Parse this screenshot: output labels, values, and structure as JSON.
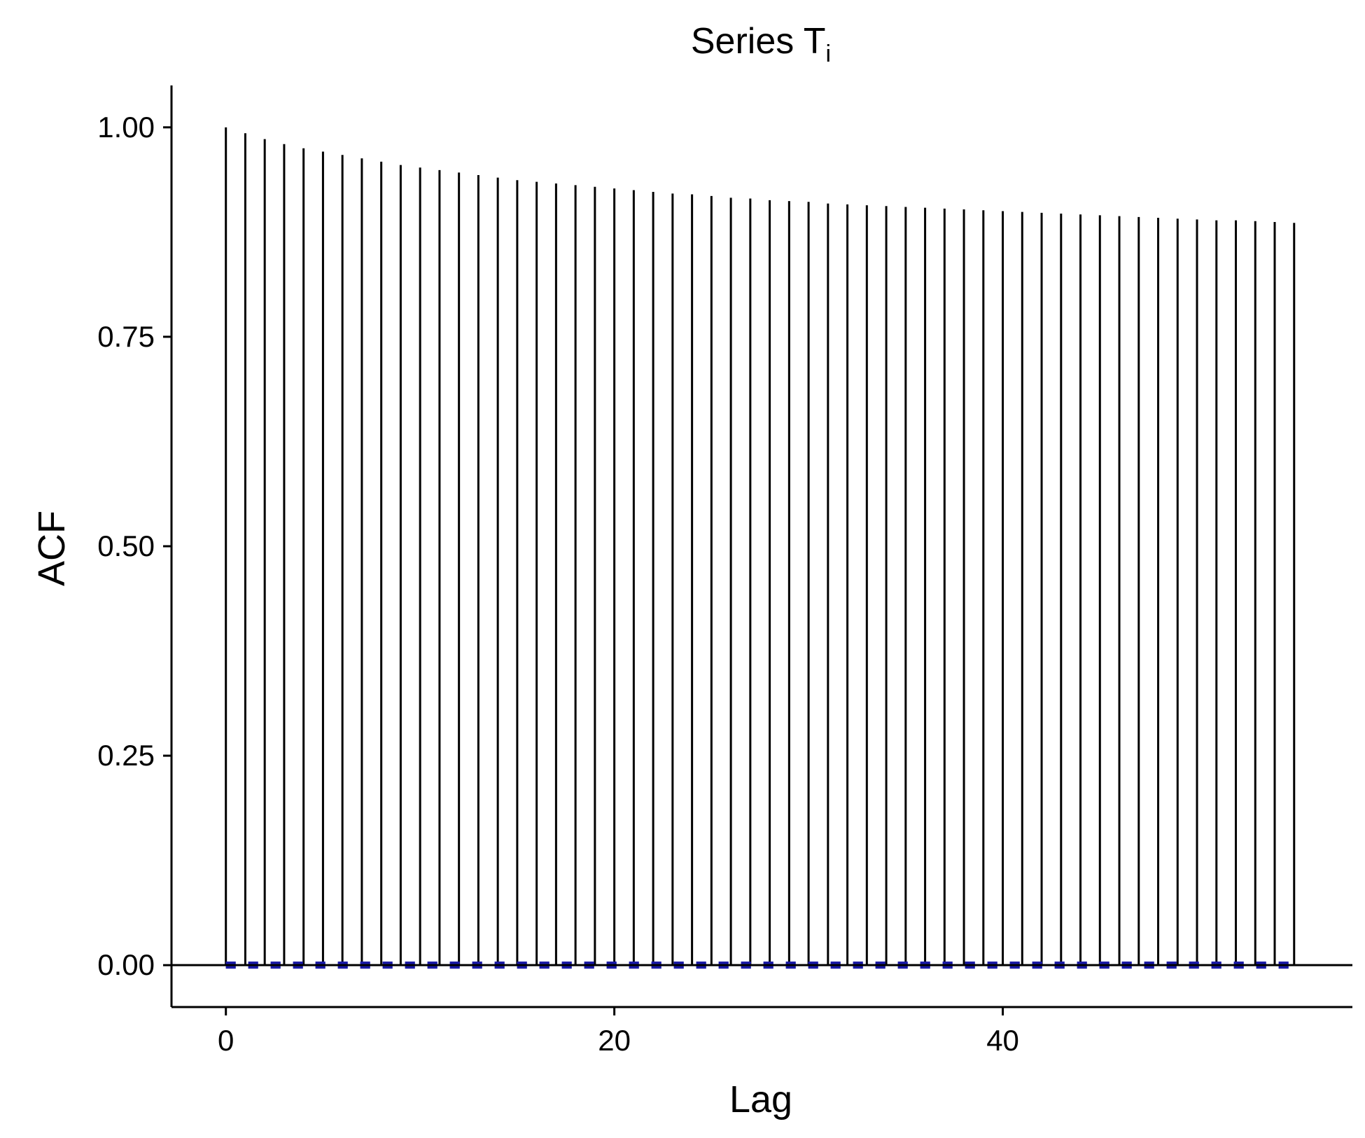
{
  "chart_data": {
    "type": "bar",
    "subtype": "acf-stem",
    "title": {
      "main": "Series T",
      "subscript": "i"
    },
    "xlabel": "Lag",
    "ylabel": "ACF",
    "xlim": [
      -2.8,
      58.0
    ],
    "ylim": [
      -0.05,
      1.05
    ],
    "x_ticks": [
      0,
      20,
      40
    ],
    "y_ticks": [
      0.0,
      0.25,
      0.5,
      0.75,
      1.0
    ],
    "x_tick_labels": [
      "0",
      "20",
      "40"
    ],
    "y_tick_labels": [
      "0.00",
      "0.25",
      "0.50",
      "0.75",
      "1.00"
    ],
    "lags": [
      0,
      1,
      2,
      3,
      4,
      5,
      6,
      7,
      8,
      9,
      10,
      11,
      12,
      13,
      14,
      15,
      16,
      17,
      18,
      19,
      20,
      21,
      22,
      23,
      24,
      25,
      26,
      27,
      28,
      29,
      30,
      31,
      32,
      33,
      34,
      35,
      36,
      37,
      38,
      39,
      40,
      41,
      42,
      43,
      44,
      45,
      46,
      47,
      48,
      49,
      50,
      51,
      52,
      53,
      54,
      55
    ],
    "acf": [
      1.0,
      0.993,
      0.986,
      0.98,
      0.975,
      0.971,
      0.967,
      0.963,
      0.959,
      0.955,
      0.952,
      0.949,
      0.946,
      0.943,
      0.94,
      0.937,
      0.935,
      0.933,
      0.931,
      0.929,
      0.927,
      0.925,
      0.923,
      0.921,
      0.92,
      0.918,
      0.916,
      0.915,
      0.913,
      0.912,
      0.911,
      0.909,
      0.908,
      0.907,
      0.906,
      0.905,
      0.904,
      0.903,
      0.902,
      0.901,
      0.9,
      0.899,
      0.898,
      0.897,
      0.896,
      0.895,
      0.894,
      0.893,
      0.892,
      0.891,
      0.89,
      0.889,
      0.889,
      0.888,
      0.887,
      0.886
    ],
    "confidence_band": {
      "upper": 0.0,
      "lower": 0.0,
      "color": "#1a1aa6",
      "style": "dashed"
    },
    "grid": false,
    "colors": {
      "stems": "#000000",
      "zero_line": "#000000",
      "axes": "#000000"
    }
  }
}
